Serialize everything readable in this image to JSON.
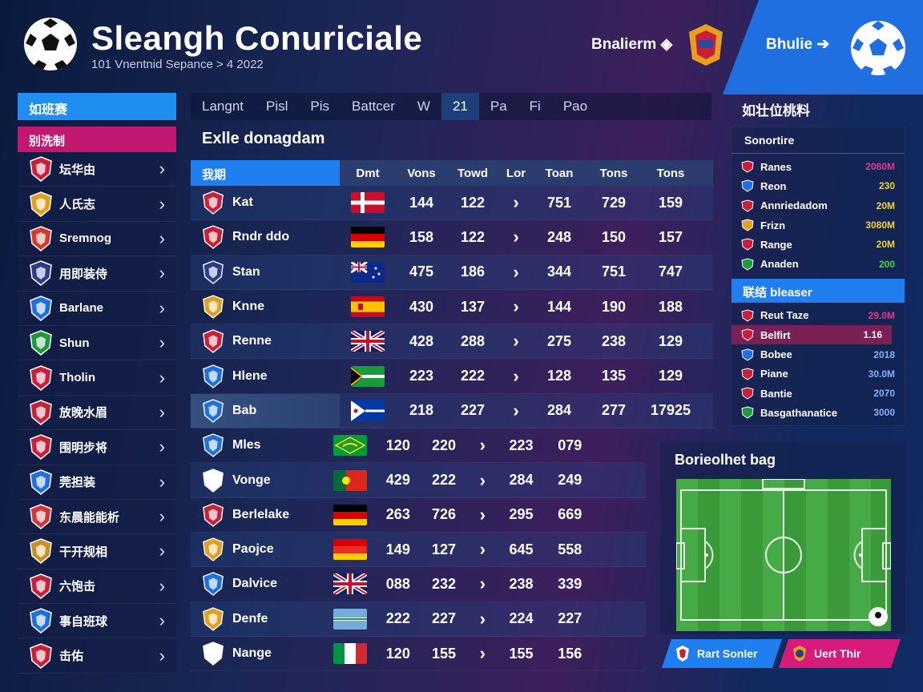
{
  "header": {
    "title": "Sleangh Conuriciale",
    "subtitle": "101 Vnentnid Sepance > 4 2022",
    "link_left": "Bnalierm",
    "link_right": "Bhulie"
  },
  "sidebar": {
    "head1": "如班赛",
    "head2": "别洗制",
    "items": [
      {
        "label": "坛华由",
        "color": "#c9203a"
      },
      {
        "label": "人氏志",
        "color": "#e0a020"
      },
      {
        "label": "Sremnog",
        "color": "#d23a2a"
      },
      {
        "label": "用即装侍",
        "color": "#2a3c8a"
      },
      {
        "label": "Barlane",
        "color": "#1f6fe0"
      },
      {
        "label": "Shun",
        "color": "#1a9a3a"
      },
      {
        "label": "Tholin",
        "color": "#c9203a"
      },
      {
        "label": "放晚水眉",
        "color": "#c9203a"
      },
      {
        "label": "围明步将",
        "color": "#c9203a"
      },
      {
        "label": "莞担装",
        "color": "#1f6fe0"
      },
      {
        "label": "东晨能能析",
        "color": "#d2343a"
      },
      {
        "label": "干开规相",
        "color": "#c9902a"
      },
      {
        "label": "六饱击",
        "color": "#c9203a"
      },
      {
        "label": "事自班球",
        "color": "#1f6fe0"
      },
      {
        "label": "击佑",
        "color": "#c9203a"
      }
    ]
  },
  "tabs": [
    "Langnt",
    "Pisl",
    "Pis",
    "Battcer",
    "W",
    "21",
    "Pa",
    "Fi",
    "Pao"
  ],
  "main": {
    "title": "Exlle donagdam",
    "columns": [
      "我期",
      "Dmt",
      "Vons",
      "Towd",
      "Lor",
      "Toan",
      "Tons",
      "Tons"
    ],
    "rows": [
      {
        "name": "Kat",
        "flag": "dk",
        "v1": "144",
        "v2": "122",
        "v3": "751",
        "v4": "729",
        "v5": "159",
        "crest": "#c9203a"
      },
      {
        "name": "Rndr ddo",
        "flag": "de",
        "v1": "158",
        "v2": "122",
        "v3": "248",
        "v4": "150",
        "v5": "157",
        "crest": "#c9203a"
      },
      {
        "name": "Stan",
        "flag": "au",
        "v1": "475",
        "v2": "186",
        "v3": "344",
        "v4": "751",
        "v5": "747",
        "crest": "#2a3c8a"
      },
      {
        "name": "Knne",
        "flag": "es",
        "v1": "430",
        "v2": "137",
        "v3": "144",
        "v4": "190",
        "v5": "188",
        "crest": "#e0a020"
      },
      {
        "name": "Renne",
        "flag": "uk",
        "v1": "428",
        "v2": "288",
        "v3": "275",
        "v4": "238",
        "v5": "129",
        "crest": "#c9203a"
      },
      {
        "name": "Hlene",
        "flag": "za",
        "v1": "223",
        "v2": "222",
        "v3": "128",
        "v4": "135",
        "v5": "129",
        "crest": "#1f6fe0"
      },
      {
        "name": "Bab",
        "flag": "ph",
        "v1": "218",
        "v2": "227",
        "v3": "284",
        "v4": "277",
        "v5": "17925",
        "crest": "#1f6fe0"
      },
      {
        "name": "Mles",
        "flag": "br",
        "v1": "120",
        "v2": "220",
        "v3": "223",
        "v4": "079",
        "v5": "",
        "crest": "#1f6fe0"
      },
      {
        "name": "Vonge",
        "flag": "pt",
        "v1": "429",
        "v2": "222",
        "v3": "284",
        "v4": "249",
        "v5": "",
        "crest": "#ffffff"
      },
      {
        "name": "Berlelake",
        "flag": "de",
        "v1": "263",
        "v2": "726",
        "v3": "295",
        "v4": "669",
        "v5": "",
        "crest": "#c9203a"
      },
      {
        "name": "Paojce",
        "flag": "de2",
        "v1": "149",
        "v2": "127",
        "v3": "645",
        "v4": "558",
        "v5": "",
        "crest": "#e0a020"
      },
      {
        "name": "Dalvice",
        "flag": "uk",
        "v1": "088",
        "v2": "232",
        "v3": "238",
        "v4": "339",
        "v5": "",
        "crest": "#1f6fe0"
      },
      {
        "name": "Denfe",
        "flag": "bw",
        "v1": "222",
        "v2": "227",
        "v3": "224",
        "v4": "227",
        "v5": "",
        "crest": "#e0a020"
      },
      {
        "name": "Nange",
        "flag": "it",
        "v1": "120",
        "v2": "155",
        "v3": "155",
        "v4": "156",
        "v5": "",
        "crest": "#ffffff"
      }
    ]
  },
  "right_panel": {
    "title": "如壮位桃料",
    "subtitle": "Sonortire",
    "rows1": [
      {
        "name": "Ranes",
        "val": "2080M",
        "color": "#e23a8a",
        "ic": "#c9203a"
      },
      {
        "name": "Reon",
        "val": "230",
        "color": "#f2d23a",
        "ic": "#1f6fe0"
      },
      {
        "name": "Annriedadom",
        "val": "20M",
        "color": "#f2d23a",
        "ic": "#c9203a"
      },
      {
        "name": "Frizn",
        "val": "3080M",
        "color": "#f2d23a",
        "ic": "#e0a020"
      },
      {
        "name": "Range",
        "val": "20M",
        "color": "#f2d23a",
        "ic": "#c9203a"
      },
      {
        "name": "Anaden",
        "val": "200",
        "color": "#4ad04a",
        "ic": "#1a9a3a"
      }
    ],
    "band": "联结 bleaser",
    "rows2": [
      {
        "name": "Reut Taze",
        "val": "29.0M",
        "color": "#e23a8a",
        "ic": "#c9203a"
      },
      {
        "name": "Belfirt",
        "val": "1.16",
        "color": "#ffffff",
        "ic": "#c9203a"
      },
      {
        "name": "Bobee",
        "val": "2018",
        "color": "#7fb2ff",
        "ic": "#1f6fe0"
      },
      {
        "name": "Piane",
        "val": "30.0M",
        "color": "#7fb2ff",
        "ic": "#c9203a"
      },
      {
        "name": "Bantie",
        "val": "2070",
        "color": "#7fb2ff",
        "ic": "#c9203a"
      },
      {
        "name": "Basgathanatice",
        "val": "3000",
        "color": "#7fb2ff",
        "ic": "#1a9a3a"
      }
    ]
  },
  "field": {
    "title": "Borieolhet bag"
  },
  "buttons": {
    "left": "Rart Sonler",
    "right": "Uert Thir"
  }
}
